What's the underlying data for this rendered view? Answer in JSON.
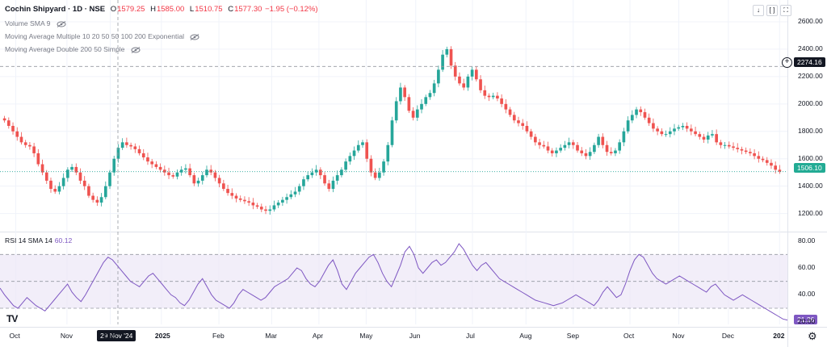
{
  "header": {
    "symbol": "Cochin Shipyard · 1D · NSE",
    "open_label": "O",
    "open": "1579.25",
    "high_label": "H",
    "high": "1585.00",
    "low_label": "L",
    "low": "1510.75",
    "close_label": "C",
    "close": "1577.30",
    "change": "−1.95 (−0.12%)"
  },
  "indicators": [
    "Volume SMA 9",
    "Moving Average Multiple 10 20 50 50 100 200 Exponential",
    "Moving Average Double 200 50 Simple"
  ],
  "rsi": {
    "label": "RSI 14 SMA 14",
    "value": "60.12",
    "last_badge": "21.26"
  },
  "price_badges": {
    "crosshair": "2274.16",
    "last": "1506.10"
  },
  "crosshair_date": "29 Nov '24",
  "toolbar": {
    "down_icon": "arrow-down-icon",
    "fit_icon": "brackets-icon",
    "expand_icon": "expand-icon",
    "settings_icon": "gear-icon",
    "logo": "TV"
  },
  "colors": {
    "up": "#26a69a",
    "down": "#ef5350",
    "rsi_line": "#7e57c2",
    "rsi_band": "#ede7f6"
  },
  "chart_data": [
    {
      "type": "candlestick",
      "title": "Cochin Shipyard · 1D · NSE",
      "y_ticks": [
        1200,
        1400,
        1600,
        1800,
        2000,
        2200,
        2400,
        2600
      ],
      "ylim": [
        1080,
        2700
      ],
      "x_ticks": [
        "Oct",
        "Nov",
        "Dec",
        "2025",
        "Feb",
        "Mar",
        "Apr",
        "May",
        "Jun",
        "Jul",
        "Aug",
        "Sep",
        "Oct",
        "Nov",
        "Dec",
        "202"
      ],
      "x_tick_pos": [
        0.02,
        0.085,
        0.14,
        0.205,
        0.278,
        0.345,
        0.405,
        0.465,
        0.528,
        0.6,
        0.668,
        0.728,
        0.8,
        0.862,
        0.925,
        0.99
      ],
      "close_series": [
        1880,
        1840,
        1800,
        1760,
        1720,
        1700,
        1690,
        1640,
        1560,
        1500,
        1440,
        1380,
        1360,
        1400,
        1460,
        1520,
        1540,
        1500,
        1440,
        1400,
        1330,
        1300,
        1280,
        1320,
        1400,
        1500,
        1600,
        1680,
        1720,
        1700,
        1690,
        1670,
        1640,
        1610,
        1580,
        1560,
        1540,
        1520,
        1500,
        1480,
        1470,
        1500,
        1520,
        1530,
        1480,
        1420,
        1440,
        1480,
        1520,
        1500,
        1460,
        1420,
        1380,
        1350,
        1330,
        1310,
        1300,
        1290,
        1280,
        1260,
        1250,
        1230,
        1220,
        1230,
        1260,
        1280,
        1300,
        1320,
        1340,
        1360,
        1400,
        1450,
        1480,
        1500,
        1520,
        1480,
        1420,
        1380,
        1440,
        1480,
        1520,
        1580,
        1620,
        1660,
        1700,
        1720,
        1600,
        1500,
        1460,
        1500,
        1580,
        1700,
        1880,
        2020,
        2120,
        2050,
        1950,
        1900,
        1960,
        2000,
        2050,
        2080,
        2150,
        2250,
        2360,
        2400,
        2280,
        2200,
        2150,
        2120,
        2200,
        2250,
        2180,
        2100,
        2060,
        2050,
        2060,
        2040,
        2000,
        1960,
        1920,
        1880,
        1860,
        1840,
        1800,
        1760,
        1720,
        1700,
        1690,
        1660,
        1640,
        1660,
        1680,
        1700,
        1720,
        1700,
        1660,
        1640,
        1620,
        1650,
        1700,
        1760,
        1700,
        1650,
        1640,
        1660,
        1720,
        1800,
        1880,
        1920,
        1960,
        1940,
        1900,
        1860,
        1820,
        1800,
        1780,
        1780,
        1800,
        1820,
        1830,
        1840,
        1820,
        1800,
        1780,
        1760,
        1740,
        1770,
        1780,
        1720,
        1700,
        1700,
        1690,
        1680,
        1670,
        1660,
        1650,
        1640,
        1620,
        1600,
        1590,
        1570,
        1550,
        1520,
        1506.1
      ],
      "last_price": 1506.1,
      "crosshair_price": 2274.16
    },
    {
      "type": "line",
      "title": "RSI 14 SMA 14",
      "y_ticks": [
        20,
        40,
        60,
        80
      ],
      "ylim": [
        18,
        84
      ],
      "band": [
        30,
        70
      ],
      "midline": 50,
      "values": [
        45,
        40,
        36,
        32,
        30,
        34,
        38,
        35,
        32,
        30,
        28,
        32,
        36,
        40,
        44,
        48,
        42,
        38,
        35,
        40,
        46,
        52,
        58,
        64,
        68,
        66,
        62,
        58,
        54,
        50,
        48,
        46,
        50,
        54,
        56,
        52,
        48,
        44,
        40,
        38,
        34,
        32,
        36,
        42,
        48,
        52,
        46,
        40,
        36,
        34,
        32,
        30,
        34,
        40,
        44,
        42,
        40,
        38,
        36,
        38,
        42,
        46,
        48,
        50,
        52,
        56,
        60,
        58,
        52,
        48,
        46,
        50,
        56,
        62,
        66,
        58,
        48,
        44,
        50,
        56,
        60,
        64,
        68,
        70,
        64,
        56,
        50,
        46,
        54,
        62,
        72,
        76,
        70,
        60,
        56,
        60,
        64,
        66,
        62,
        64,
        68,
        72,
        78,
        74,
        68,
        62,
        58,
        62,
        64,
        60,
        56,
        52,
        50,
        48,
        46,
        44,
        42,
        40,
        38,
        36,
        35,
        34,
        33,
        32,
        33,
        34,
        36,
        38,
        40,
        38,
        36,
        34,
        32,
        36,
        42,
        46,
        42,
        38,
        40,
        48,
        58,
        66,
        70,
        68,
        62,
        56,
        52,
        50,
        48,
        50,
        52,
        54,
        52,
        50,
        48,
        46,
        44,
        42,
        46,
        48,
        44,
        40,
        38,
        36,
        38,
        40,
        38,
        36,
        34,
        32,
        30,
        28,
        26,
        24,
        22,
        21.26
      ],
      "last_value": 21.26
    }
  ]
}
